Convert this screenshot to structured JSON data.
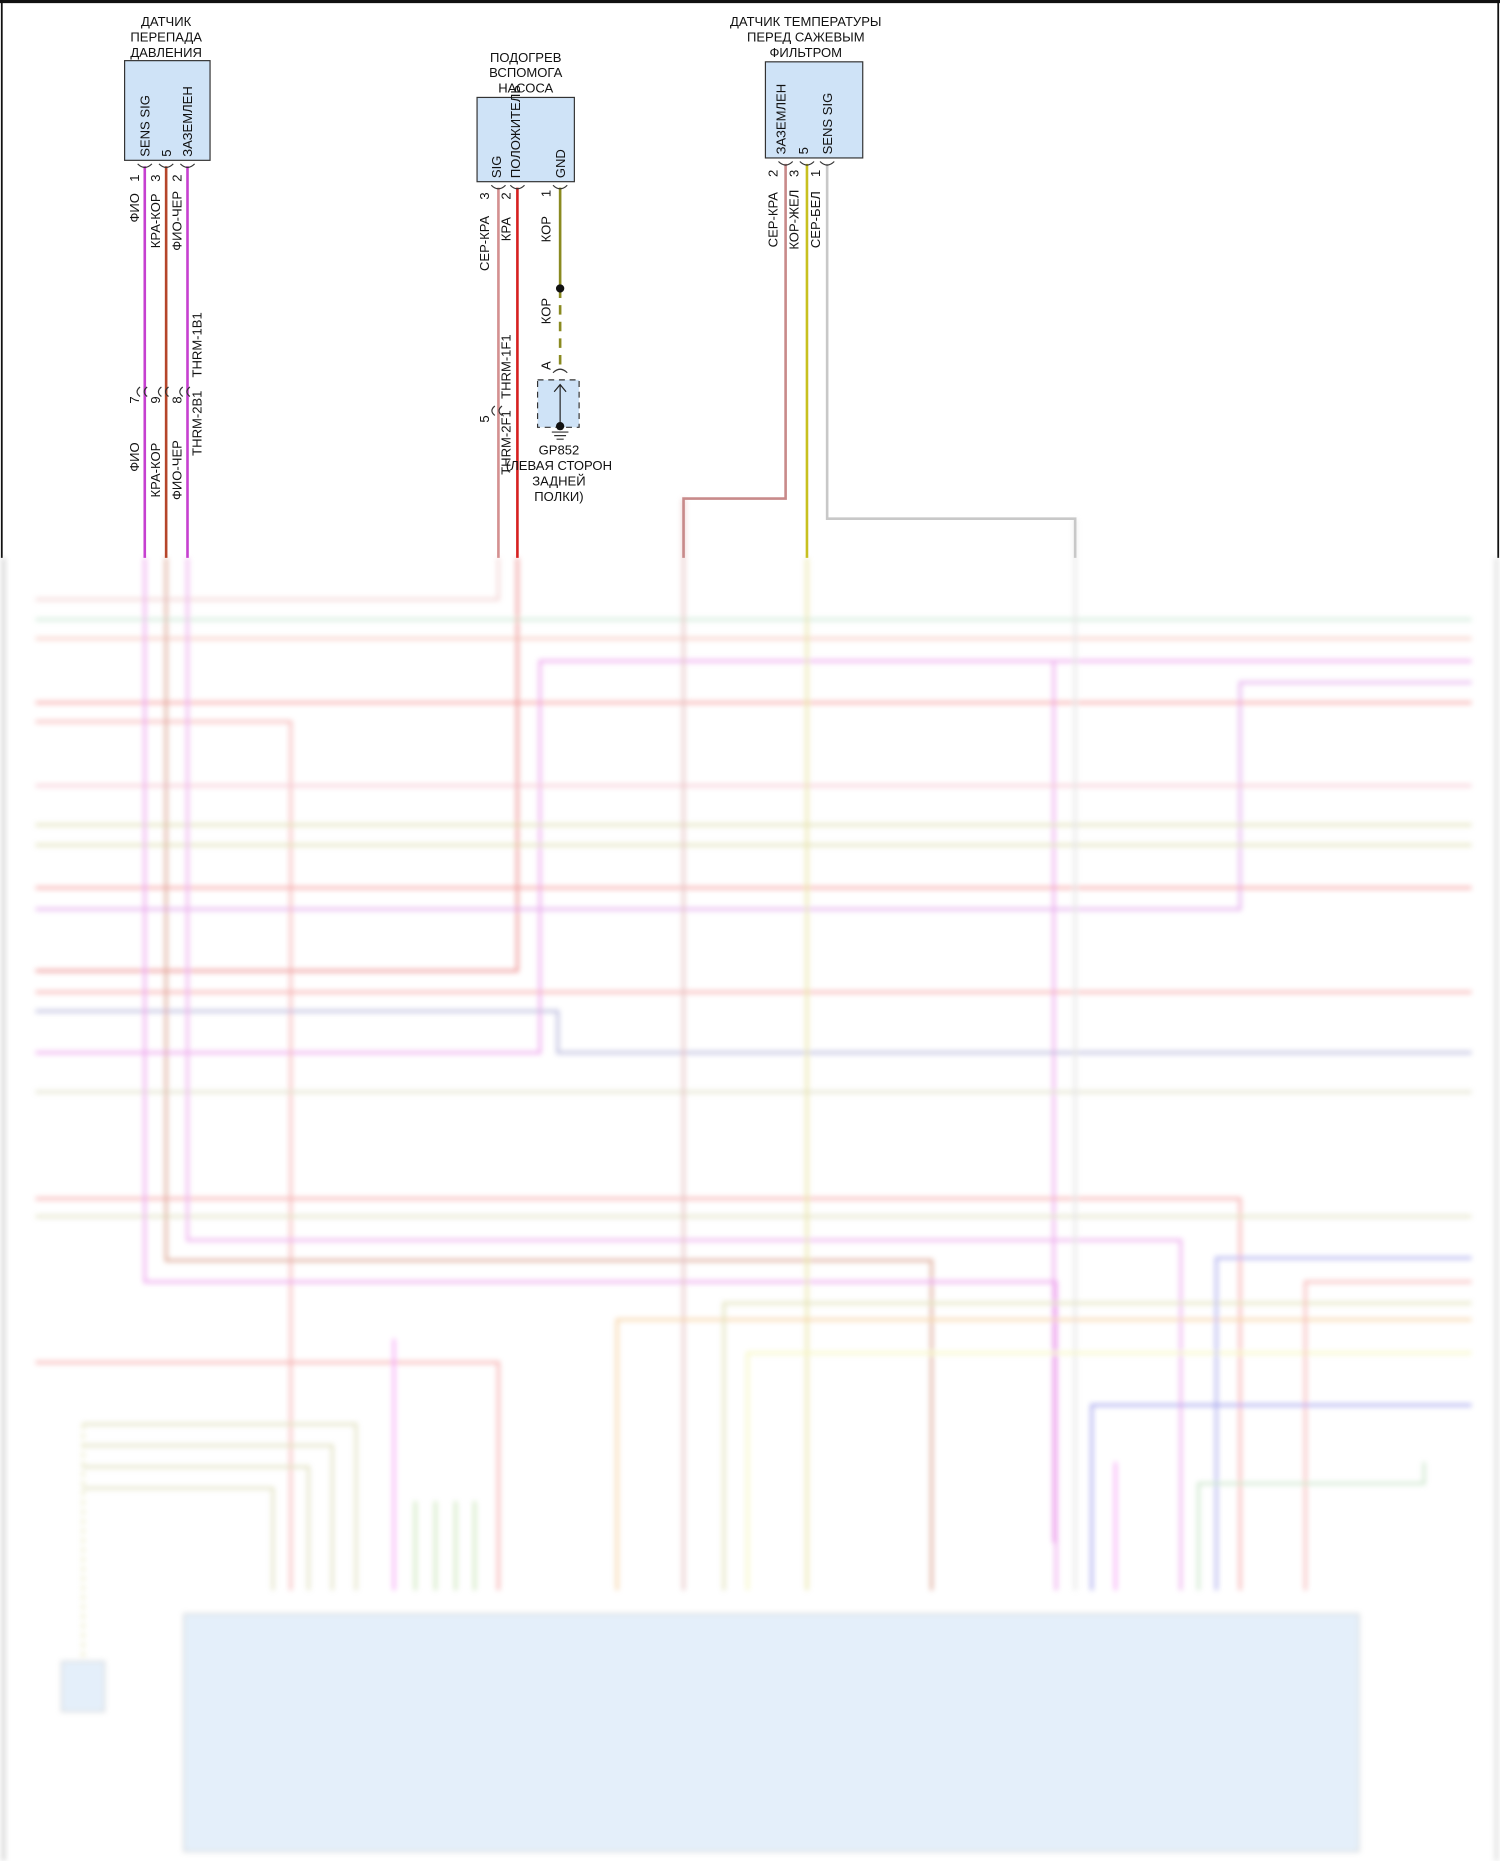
{
  "components": [
    {
      "title": [
        "ДАТЧИК",
        "ПЕРЕПАДА",
        "ДАВЛЕНИЯ"
      ],
      "pins": [
        "SENS SIG",
        "5",
        "ЗАЗЕМЛЕН"
      ],
      "pin_numbers": [
        "1",
        "3",
        "2"
      ],
      "wires": [
        "ФИО",
        "КРА-КОР",
        "ФИО-ЧЕР"
      ],
      "connector": {
        "pins": [
          "7",
          "9",
          "8"
        ],
        "labels": [
          "THRM-1B1",
          "THRM-2B1"
        ]
      },
      "wires_below": [
        "ФИО",
        "КРА-КОР",
        "ФИО-ЧЕР"
      ]
    },
    {
      "title": [
        "ПОДОГРЕВ",
        "ВСПОМОГА",
        "НАСОСА"
      ],
      "pins": [
        "SIG",
        "ПОЛОЖИТЕЛЬ",
        "GND"
      ],
      "pin_numbers": [
        "3",
        "2",
        "1"
      ],
      "wires": [
        "СЕР-КРА",
        "КРА",
        "КОР"
      ],
      "connector": {
        "pins": [
          "5"
        ],
        "labels": [
          "THRM-1F1",
          "THRM-2F1"
        ]
      },
      "ground": {
        "wire": "КОР",
        "pin": "A",
        "id": "GP852",
        "location": [
          "(ЛЕВАЯ СТОРОН",
          "ЗАДНЕЙ",
          "ПОЛКИ)"
        ]
      }
    },
    {
      "title": [
        "ДАТЧИК ТЕМПЕРАТУРЫ",
        "ПЕРЕД САЖЕВЫМ",
        "ФИЛЬТРОМ"
      ],
      "pins": [
        "ЗАЗЕМЛЕН",
        "5",
        "SENS SIG"
      ],
      "pin_numbers": [
        "2",
        "3",
        "1"
      ],
      "wires": [
        "СЕР-КРА",
        "КОР-ЖЕЛ",
        "СЕР-БЕЛ"
      ]
    }
  ],
  "colors": {
    "violet": "#c640d0",
    "red_brown": "#b5452a",
    "grey_red": "#d49090",
    "red": "#d62020",
    "brown": "#8a8a20",
    "brown_yellow": "#c8c020",
    "grey_white": "#c8c8c8",
    "connector_fill": "#cfe3f7"
  }
}
